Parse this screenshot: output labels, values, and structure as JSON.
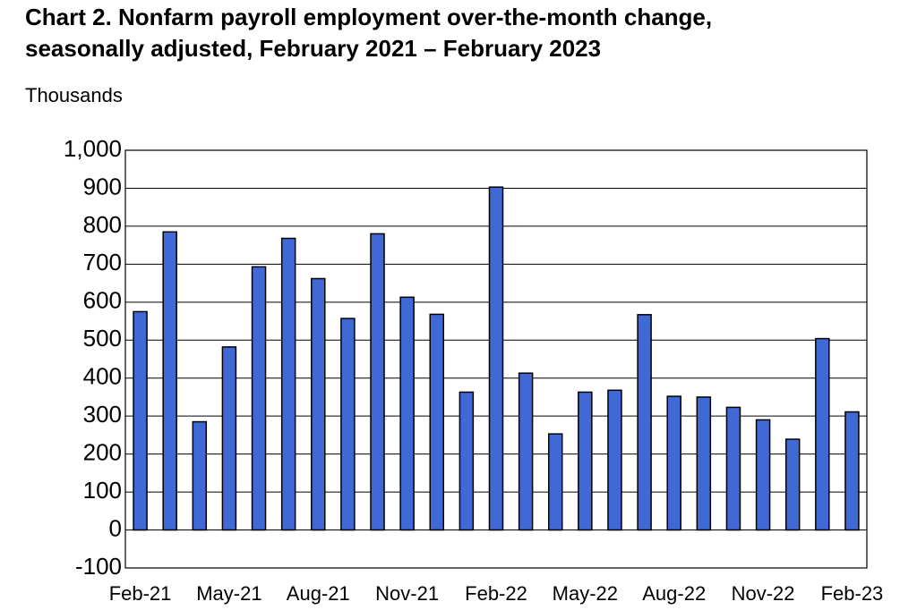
{
  "chart_data": {
    "type": "bar",
    "title": [
      "Chart 2. Nonfarm payroll employment over-the-month change,",
      "seasonally adjusted, February 2021 – February 2023"
    ],
    "y_label": "Thousands",
    "categories": [
      "Feb-21",
      null,
      null,
      "May-21",
      null,
      null,
      "Aug-21",
      null,
      null,
      "Nov-21",
      null,
      null,
      "Feb-22",
      null,
      null,
      "May-22",
      null,
      null,
      "Aug-22",
      null,
      null,
      "Nov-22",
      null,
      null,
      "Feb-23"
    ],
    "values": [
      575,
      785,
      285,
      482,
      693,
      768,
      662,
      557,
      780,
      613,
      568,
      363,
      903,
      413,
      253,
      363,
      368,
      567,
      352,
      350,
      323,
      290,
      239,
      504,
      311
    ],
    "color": "#4169d6",
    "ylim": [
      -100,
      1000
    ],
    "yticks": [
      -100,
      0,
      100,
      200,
      300,
      400,
      500,
      600,
      700,
      800,
      900,
      {
        "value": 1000,
        "label": "1,000"
      }
    ],
    "grid": true
  }
}
